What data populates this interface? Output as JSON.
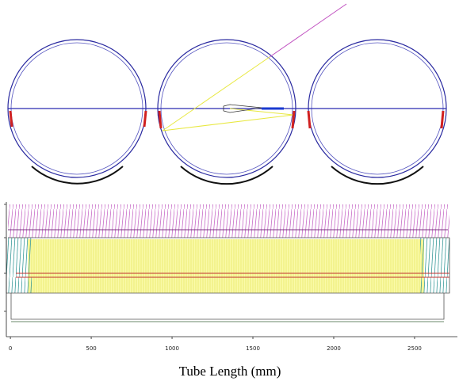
{
  "chart_data": {
    "type": "tube",
    "xlabel": "Tube Length (mm)",
    "xlim": [
      -25,
      2765
    ],
    "xticks": [
      0,
      500,
      1000,
      1500,
      2000,
      2500
    ]
  }
}
